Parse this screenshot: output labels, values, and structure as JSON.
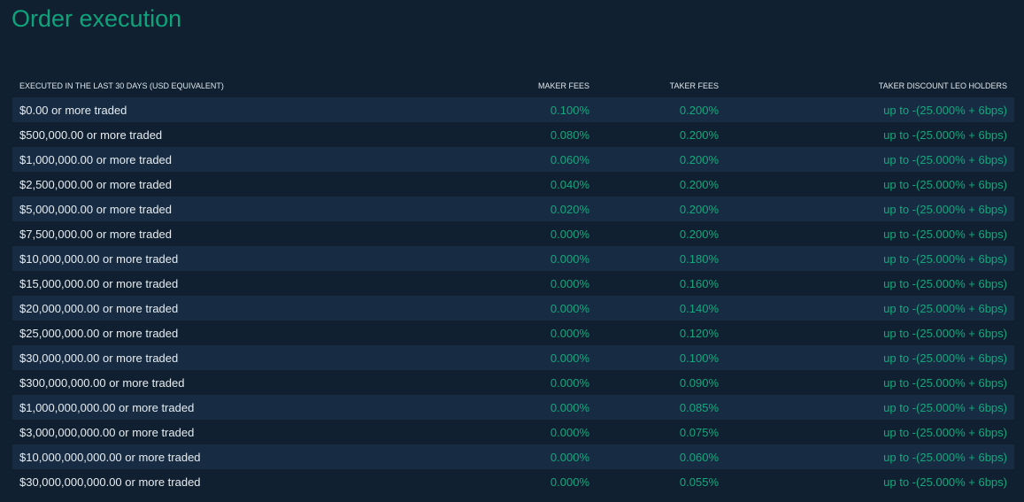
{
  "title": "Order execution",
  "table": {
    "headers": [
      "EXECUTED IN THE LAST 30 DAYS (USD EQUIVALENT)",
      "MAKER FEES",
      "TAKER FEES",
      "TAKER DISCOUNT LEO HOLDERS"
    ],
    "rows": [
      [
        "$0.00 or more traded",
        "0.100%",
        "0.200%",
        "up to -(25.000% + 6bps)"
      ],
      [
        "$500,000.00 or more traded",
        "0.080%",
        "0.200%",
        "up to -(25.000% + 6bps)"
      ],
      [
        "$1,000,000.00 or more traded",
        "0.060%",
        "0.200%",
        "up to -(25.000% + 6bps)"
      ],
      [
        "$2,500,000.00 or more traded",
        "0.040%",
        "0.200%",
        "up to -(25.000% + 6bps)"
      ],
      [
        "$5,000,000.00 or more traded",
        "0.020%",
        "0.200%",
        "up to -(25.000% + 6bps)"
      ],
      [
        "$7,500,000.00 or more traded",
        "0.000%",
        "0.200%",
        "up to -(25.000% + 6bps)"
      ],
      [
        "$10,000,000.00 or more traded",
        "0.000%",
        "0.180%",
        "up to -(25.000% + 6bps)"
      ],
      [
        "$15,000,000.00 or more traded",
        "0.000%",
        "0.160%",
        "up to -(25.000% + 6bps)"
      ],
      [
        "$20,000,000.00 or more traded",
        "0.000%",
        "0.140%",
        "up to -(25.000% + 6bps)"
      ],
      [
        "$25,000,000.00 or more traded",
        "0.000%",
        "0.120%",
        "up to -(25.000% + 6bps)"
      ],
      [
        "$30,000,000.00 or more traded",
        "0.000%",
        "0.100%",
        "up to -(25.000% + 6bps)"
      ],
      [
        "$300,000,000.00 or more traded",
        "0.000%",
        "0.090%",
        "up to -(25.000% + 6bps)"
      ],
      [
        "$1,000,000,000.00 or more traded",
        "0.000%",
        "0.085%",
        "up to -(25.000% + 6bps)"
      ],
      [
        "$3,000,000,000.00 or more traded",
        "0.000%",
        "0.075%",
        "up to -(25.000% + 6bps)"
      ],
      [
        "$10,000,000,000.00 or more traded",
        "0.000%",
        "0.060%",
        "up to -(25.000% + 6bps)"
      ],
      [
        "$30,000,000,000.00 or more traded",
        "0.000%",
        "0.055%",
        "up to -(25.000% + 6bps)"
      ]
    ]
  }
}
